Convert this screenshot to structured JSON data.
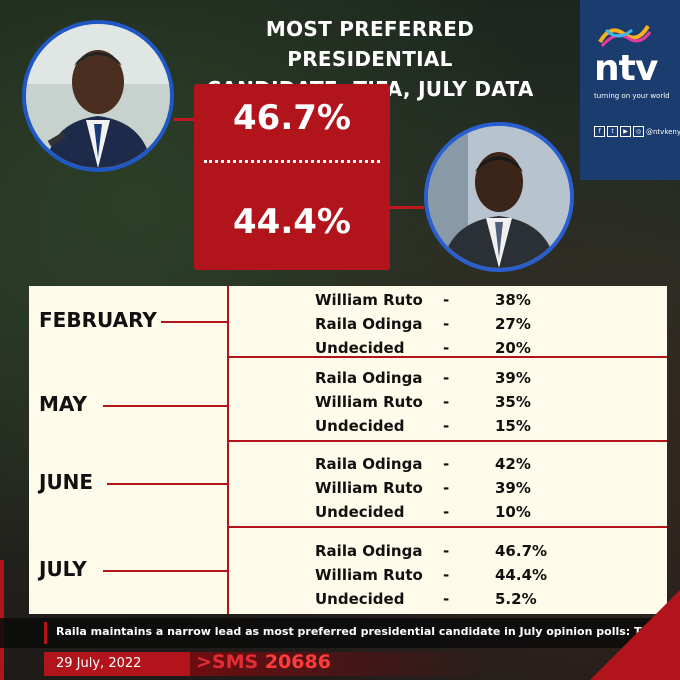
{
  "headline": {
    "line1": "MOST PREFERRED PRESIDENTIAL",
    "line2": "CANDIDATE: TIFA, JULY DATA"
  },
  "brand": {
    "logo_text": "ntv",
    "tagline": "turning on your world",
    "social_handle": "@ntvkenya",
    "colors": {
      "navy": "#1a3c6e",
      "red": "#b1141a",
      "blue": "#1f57c4"
    }
  },
  "headline_results": {
    "top_percent": "46.7%",
    "bottom_percent": "44.4%"
  },
  "months": [
    {
      "label": "FEBRUARY",
      "rows": [
        {
          "name": "William Ruto",
          "dash": "-",
          "value": "38%"
        },
        {
          "name": "Raila Odinga",
          "dash": "-",
          "value": "27%"
        },
        {
          "name": "Undecided",
          "dash": "-",
          "value": "20%"
        }
      ]
    },
    {
      "label": "MAY",
      "rows": [
        {
          "name": "Raila Odinga",
          "dash": "-",
          "value": "39%"
        },
        {
          "name": "William Ruto",
          "dash": "-",
          "value": "35%"
        },
        {
          "name": "Undecided",
          "dash": "-",
          "value": "15%"
        }
      ]
    },
    {
      "label": "JUNE",
      "rows": [
        {
          "name": "Raila Odinga",
          "dash": "-",
          "value": "42%"
        },
        {
          "name": "William Ruto",
          "dash": "-",
          "value": "39%"
        },
        {
          "name": "Undecided",
          "dash": "-",
          "value": "10%"
        }
      ]
    },
    {
      "label": "JULY",
      "rows": [
        {
          "name": "Raila Odinga",
          "dash": "-",
          "value": "46.7%"
        },
        {
          "name": "William Ruto",
          "dash": "-",
          "value": "44.4%"
        },
        {
          "name": "Undecided",
          "dash": "-",
          "value": "5.2%"
        }
      ]
    }
  ],
  "caption": "Raila maintains a narrow lead as most preferred presidential candidate in July opinion polls: TIFA",
  "footer": {
    "date": "29 July, 2022",
    "sms_prefix": ">SMS",
    "sms_number": "20686"
  }
}
